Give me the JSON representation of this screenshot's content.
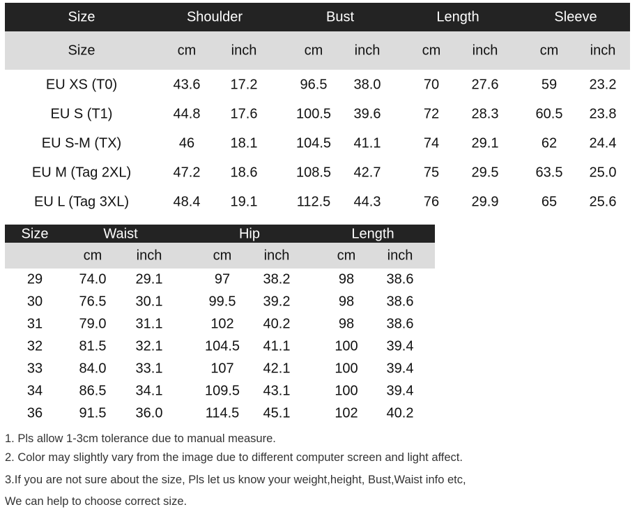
{
  "top_table": {
    "groups": [
      "Size",
      "Shoulder",
      "Bust",
      "Length",
      "Sleeve"
    ],
    "subheaders": [
      "Size",
      "cm",
      "inch",
      "cm",
      "inch",
      "cm",
      "inch",
      "cm",
      "inch"
    ],
    "rows": [
      [
        "EU XS (T0)",
        "43.6",
        "17.2",
        "96.5",
        "38.0",
        "70",
        "27.6",
        "59",
        "23.2"
      ],
      [
        "EU S (T1)",
        "44.8",
        "17.6",
        "100.5",
        "39.6",
        "72",
        "28.3",
        "60.5",
        "23.8"
      ],
      [
        "EU S-M (TX)",
        "46",
        "18.1",
        "104.5",
        "41.1",
        "74",
        "29.1",
        "62",
        "24.4"
      ],
      [
        "EU M (Tag 2XL)",
        "47.2",
        "18.6",
        "108.5",
        "42.7",
        "75",
        "29.5",
        "63.5",
        "25.0"
      ],
      [
        "EU L (Tag 3XL)",
        "48.4",
        "19.1",
        "112.5",
        "44.3",
        "76",
        "29.9",
        "65",
        "25.6"
      ]
    ]
  },
  "bottom_table": {
    "groups": [
      "Size",
      "Waist",
      "Hip",
      "Length"
    ],
    "subheaders": [
      "",
      "cm",
      "inch",
      "cm",
      "inch",
      "cm",
      "inch"
    ],
    "rows": [
      [
        "29",
        "74.0",
        "29.1",
        "97",
        "38.2",
        "98",
        "38.6"
      ],
      [
        "30",
        "76.5",
        "30.1",
        "99.5",
        "39.2",
        "98",
        "38.6"
      ],
      [
        "31",
        "79.0",
        "31.1",
        "102",
        "40.2",
        "98",
        "38.6"
      ],
      [
        "32",
        "81.5",
        "32.1",
        "104.5",
        "41.1",
        "100",
        "39.4"
      ],
      [
        "33",
        "84.0",
        "33.1",
        "107",
        "42.1",
        "100",
        "39.4"
      ],
      [
        "34",
        "86.5",
        "34.1",
        "109.5",
        "43.1",
        "100",
        "39.4"
      ],
      [
        "36",
        "91.5",
        "36.0",
        "114.5",
        "45.1",
        "102",
        "40.2"
      ]
    ]
  },
  "notes": [
    "1. Pls allow 1-3cm tolerance due to manual measure.",
    "2. Color may slightly vary from the image due to different computer screen and light affect.",
    "3.If you are not sure about the size, Pls let us know your weight,height, Bust,Waist info etc,",
    "We can help to choose correct size."
  ]
}
